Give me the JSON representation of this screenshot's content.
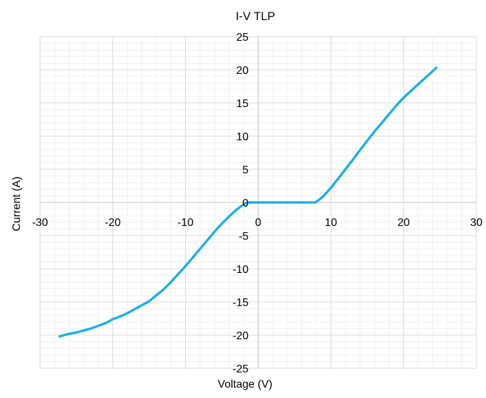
{
  "chart_data": {
    "type": "line",
    "title": "I-V TLP",
    "xlabel": "Voltage (V)",
    "ylabel": "Current (A)",
    "xlim": [
      -30,
      30
    ],
    "ylim": [
      -25,
      25
    ],
    "x_major_step": 10,
    "y_major_step": 5,
    "x_ticks": [
      "-30",
      "-20",
      "-10",
      "0",
      "10",
      "20",
      "30"
    ],
    "y_ticks": [
      "-25",
      "-20",
      "-15",
      "-10",
      "-5",
      "0",
      "5",
      "10",
      "15",
      "20",
      "25"
    ],
    "grid": {
      "major": true,
      "minor": true,
      "minor_per_major": 5
    },
    "legend": "none",
    "colors": {
      "series": "#1eaee4",
      "major_grid": "#d9d9d9",
      "minor_grid": "#f0f0f0",
      "axis": "#bfbfbf"
    },
    "series": [
      {
        "x": [
          -27.3,
          -26,
          -25,
          -24,
          -23,
          -22,
          -21,
          -20,
          -19,
          -18,
          -17,
          -16,
          -15,
          -14,
          -13,
          -12,
          -11,
          -10,
          -9,
          -8,
          -7,
          -6,
          -5,
          -4,
          -3,
          -2,
          -1.5,
          -1,
          -0.5,
          0,
          1,
          2,
          3,
          4,
          5,
          6,
          7,
          7.8,
          8,
          8.5,
          9,
          10,
          11,
          12,
          13,
          14,
          15,
          16,
          17,
          18,
          19,
          20,
          21,
          22,
          23,
          24,
          24.5
        ],
        "y": [
          -20.2,
          -19.8,
          -19.6,
          -19.3,
          -19.0,
          -18.6,
          -18.2,
          -17.6,
          -17.2,
          -16.7,
          -16.1,
          -15.5,
          -14.9,
          -14.0,
          -13.1,
          -12.0,
          -10.8,
          -9.6,
          -8.3,
          -7.0,
          -5.7,
          -4.4,
          -3.2,
          -2.1,
          -1.1,
          -0.3,
          0,
          0,
          0,
          0,
          0,
          0,
          0,
          0,
          0,
          0,
          0,
          0,
          0.1,
          0.5,
          1.0,
          2.2,
          3.6,
          5.0,
          6.4,
          7.9,
          9.3,
          10.7,
          12.0,
          13.3,
          14.6,
          15.8,
          16.8,
          17.8,
          18.8,
          19.8,
          20.3
        ]
      }
    ]
  }
}
